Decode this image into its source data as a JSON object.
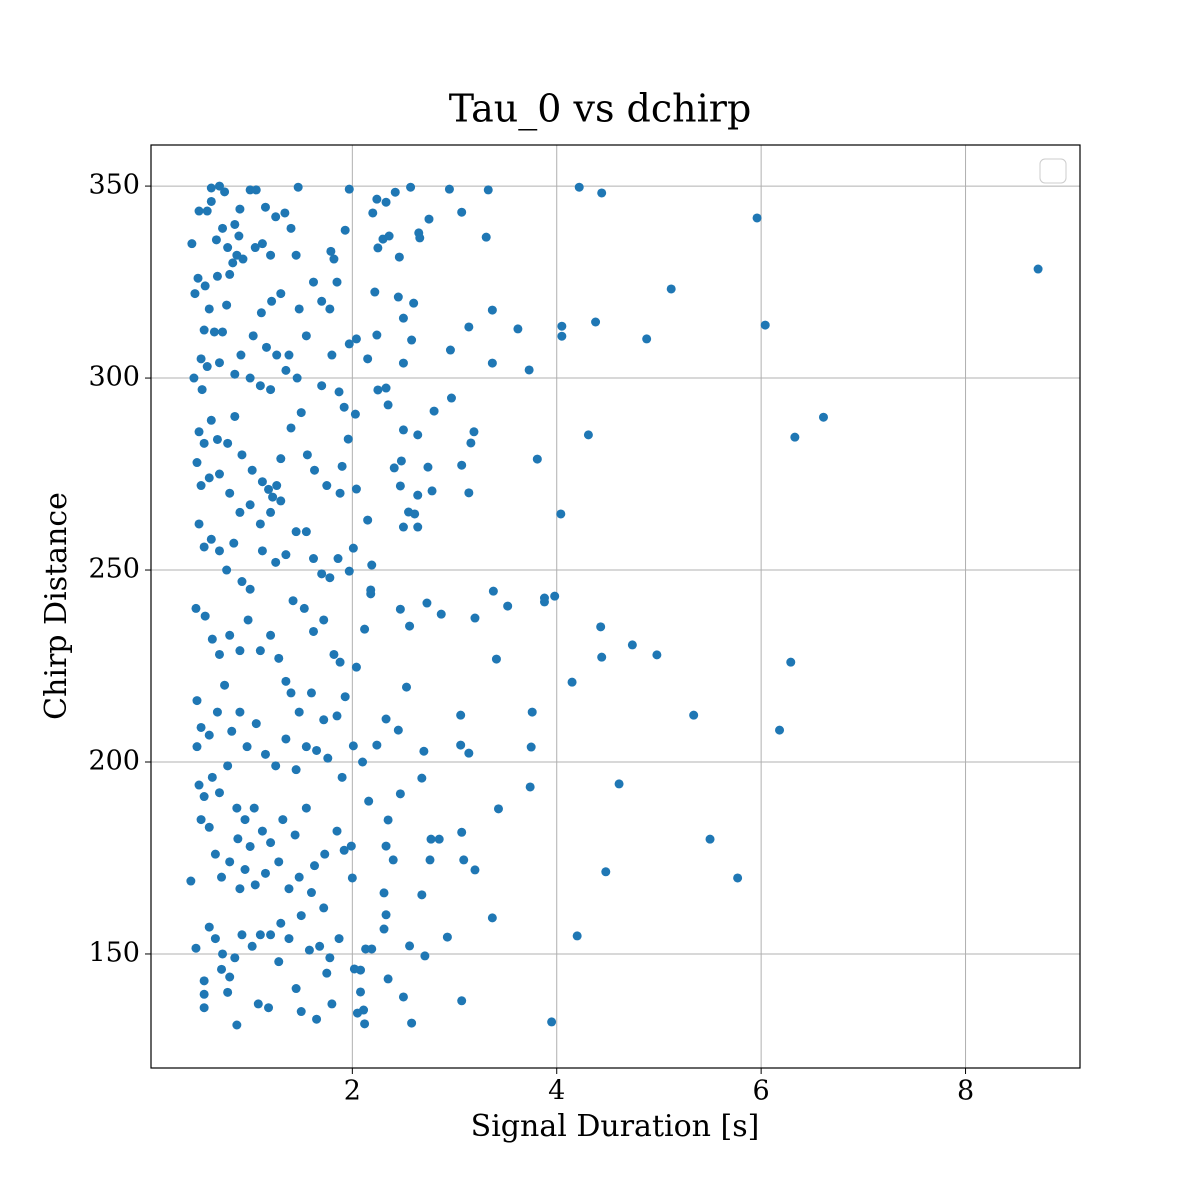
{
  "chart_data": {
    "type": "scatter",
    "title": "Tau_0 vs dchirp",
    "xlabel": "Signal Duration [s]",
    "ylabel": "Chirp Distance",
    "color": "#1f77b4",
    "grid": true,
    "legend": "upper right",
    "xlim": [
      0.03,
      9.12
    ],
    "ylim": [
      120.3,
      360.7
    ],
    "xticks": [
      2,
      4,
      6,
      8
    ],
    "yticks": [
      150,
      200,
      250,
      300,
      350
    ],
    "x": [
      8.71,
      5.96,
      6.04,
      6.61,
      6.33,
      5.12,
      4.88,
      4.38,
      4.31,
      4.04,
      3.81,
      3.73,
      3.62,
      3.37,
      4.44,
      4.22,
      4.05,
      4.05,
      6.29,
      6.18,
      5.34,
      4.74,
      4.98,
      4.43,
      4.44,
      4.15,
      3.98,
      3.88,
      3.88,
      3.52,
      3.38,
      3.2,
      3.41,
      3.76,
      3.75,
      3.74,
      4.61,
      5.5,
      5.77,
      4.48,
      4.2,
      3.95,
      3.43,
      3.37,
      3.07,
      3.09,
      3.2,
      3.07,
      2.93,
      3.06,
      3.06,
      3.14,
      2.87,
      2.73,
      2.56,
      2.53,
      2.68,
      2.7,
      2.77,
      2.85,
      2.76,
      2.68,
      2.71,
      2.56,
      2.58,
      2.5,
      2.33,
      2.45,
      2.47,
      2.35,
      2.33,
      2.4,
      2.31,
      2.33,
      2.31,
      2.35,
      2.11,
      2.05,
      2.12,
      2.08,
      2.13,
      2.19,
      2.08,
      2.02,
      2.0,
      1.99,
      2.16,
      2.1,
      2.01,
      2.24,
      2.04,
      2.12,
      2.18,
      2.18,
      2.19,
      2.47,
      1.97,
      2.01,
      2.04,
      1.96,
      2.03,
      1.92,
      1.87,
      2.25,
      2.33,
      2.35,
      2.5,
      2.64,
      2.8,
      2.97,
      3.07,
      3.14,
      3.16,
      3.19,
      2.74,
      2.78,
      2.64,
      2.55,
      2.61,
      2.5,
      2.64,
      2.41,
      2.47,
      2.48,
      2.15,
      1.97,
      2.04,
      2.15,
      2.24,
      2.5,
      2.6,
      2.45,
      2.22,
      2.58,
      2.96,
      3.14,
      3.37,
      2.5,
      2.25,
      2.3,
      2.36,
      2.46,
      2.65,
      2.66,
      2.75,
      2.2,
      2.24,
      2.33,
      2.42,
      2.57,
      2.95,
      3.33,
      3.07,
      3.31,
      1.97,
      1.93,
      1.47,
      0.43,
      0.46,
      0.49,
      0.5,
      0.58,
      0.62,
      0.7,
      0.75,
      0.62,
      0.73,
      0.67,
      0.85,
      0.89,
      0.9,
      0.87,
      0.78,
      0.8,
      0.68,
      0.56,
      0.6,
      0.55,
      0.65,
      0.73,
      0.77,
      0.83,
      0.93,
      1.0,
      1.06,
      1.15,
      1.25,
      1.34,
      1.12,
      1.05,
      1.2,
      1.4,
      1.45,
      1.3,
      1.21,
      1.11,
      1.03,
      1.16,
      1.26,
      1.38,
      1.48,
      1.55,
      1.62,
      1.7,
      1.78,
      1.85,
      1.79,
      1.82,
      0.52,
      0.58,
      0.7,
      0.85,
      0.91,
      1.0,
      1.1,
      1.2,
      1.35,
      1.46,
      1.7,
      1.8,
      0.45,
      0.53,
      0.62,
      0.5,
      0.55,
      0.68,
      0.78,
      0.85,
      0.92,
      1.02,
      1.12,
      1.18,
      1.22,
      1.26,
      1.3,
      1.4,
      1.5,
      1.56,
      1.63,
      1.75,
      1.88,
      1.9,
      0.48,
      0.52,
      0.6,
      0.7,
      0.8,
      0.9,
      1.0,
      1.1,
      1.2,
      1.3,
      1.45,
      1.55,
      1.62,
      1.7,
      1.78,
      1.86,
      0.5,
      0.55,
      0.62,
      0.7,
      0.77,
      0.84,
      0.92,
      1.0,
      1.12,
      1.25,
      1.35,
      1.42,
      1.53,
      1.62,
      1.72,
      1.82,
      1.88,
      0.47,
      0.56,
      0.63,
      0.7,
      0.8,
      0.9,
      0.98,
      1.1,
      1.2,
      1.28,
      1.35,
      1.4,
      1.48,
      1.6,
      1.72,
      1.85,
      1.93,
      0.48,
      0.52,
      0.6,
      0.68,
      0.75,
      0.82,
      0.9,
      0.97,
      1.06,
      1.15,
      1.25,
      1.35,
      1.45,
      1.55,
      1.65,
      1.76,
      1.9,
      0.48,
      0.5,
      0.55,
      0.63,
      0.7,
      0.78,
      0.87,
      0.95,
      1.04,
      1.12,
      1.2,
      1.32,
      1.44,
      1.55,
      1.63,
      1.73,
      1.85,
      1.92,
      0.52,
      0.6,
      0.66,
      0.72,
      0.8,
      0.88,
      0.95,
      1.05,
      1.15,
      1.28,
      1.38,
      1.48,
      1.6,
      1.72,
      0.42,
      0.6,
      0.66,
      0.73,
      0.85,
      0.92,
      1.02,
      1.1,
      1.2,
      1.3,
      1.38,
      1.5,
      1.58,
      1.68,
      1.78,
      1.87,
      0.47,
      0.55,
      0.55,
      0.55,
      0.72,
      0.8,
      0.78,
      0.87,
      1.08,
      1.18,
      1.28,
      1.45,
      1.5,
      1.65,
      1.75,
      1.8,
      0.9,
      1.0
    ],
    "values": [
      328.4,
      341.7,
      313.8,
      289.8,
      284.6,
      323.2,
      310.2,
      314.6,
      285.2,
      264.6,
      278.9,
      302.1,
      312.8,
      317.7,
      348.2,
      349.7,
      313.5,
      310.9,
      226.0,
      208.3,
      212.2,
      230.5,
      227.9,
      235.2,
      227.3,
      220.8,
      243.2,
      242.7,
      241.7,
      240.6,
      244.5,
      237.5,
      226.8,
      213.0,
      203.9,
      193.5,
      194.3,
      179.9,
      169.8,
      171.4,
      154.7,
      132.3,
      187.8,
      159.4,
      181.7,
      174.5,
      171.9,
      137.8,
      154.4,
      212.2,
      204.4,
      202.3,
      238.5,
      241.4,
      235.4,
      219.5,
      195.8,
      202.8,
      179.9,
      179.9,
      174.5,
      165.4,
      149.5,
      152.1,
      132.0,
      138.8,
      211.2,
      208.3,
      191.7,
      184.9,
      178.1,
      174.5,
      165.9,
      160.2,
      156.5,
      143.5,
      135.4,
      134.6,
      131.8,
      145.8,
      151.3,
      151.3,
      140.1,
      146.1,
      169.8,
      178.1,
      189.8,
      200.0,
      204.2,
      204.4,
      224.7,
      234.6,
      243.8,
      244.8,
      251.3,
      239.8,
      249.7,
      255.7,
      271.1,
      284.1,
      290.6,
      292.4,
      296.4,
      296.9,
      297.4,
      293.0,
      286.5,
      285.2,
      291.4,
      294.8,
      277.3,
      270.1,
      283.1,
      286.0,
      276.8,
      270.6,
      269.5,
      265.1,
      264.6,
      261.2,
      261.2,
      276.6,
      271.9,
      278.4,
      263.0,
      308.9,
      310.2,
      305.0,
      311.2,
      315.6,
      319.5,
      321.1,
      322.4,
      309.9,
      307.3,
      313.3,
      303.9,
      303.9,
      333.9,
      336.2,
      337.0,
      331.5,
      337.8,
      336.5,
      341.4,
      343.0,
      346.6,
      345.8,
      348.4,
      349.7,
      349.2,
      349.0,
      343.2,
      336.7,
      349.2,
      338.5,
      349.7,
      335,
      322,
      326,
      343.5,
      343.5,
      349.5,
      350,
      348.5,
      346,
      339,
      336,
      340,
      337,
      344,
      332,
      334,
      327,
      326.5,
      324,
      318,
      312.5,
      312,
      312,
      319,
      330,
      331,
      349,
      349,
      344.5,
      342,
      343,
      335,
      334,
      332,
      339,
      332,
      322,
      320,
      317,
      311,
      308,
      306,
      306,
      318,
      311,
      325,
      320,
      318,
      325,
      333,
      331,
      305,
      303,
      304,
      301,
      306,
      300,
      298,
      297,
      302,
      300,
      298,
      306,
      300,
      297,
      289,
      286,
      283,
      284,
      283,
      290,
      280,
      276,
      273,
      271,
      269,
      272,
      279,
      287,
      291,
      280,
      276,
      272,
      270,
      277,
      278,
      272,
      274,
      275,
      270,
      265,
      267,
      262,
      265,
      268,
      260,
      260,
      253,
      249,
      248,
      253,
      262,
      256,
      258,
      255,
      250,
      257,
      247,
      245,
      255,
      252,
      254,
      242,
      240,
      234,
      237,
      228,
      226,
      240,
      238,
      232,
      228,
      233,
      229,
      237,
      229,
      233,
      227,
      221,
      218,
      213,
      218,
      211,
      212,
      217,
      216,
      209,
      207,
      213,
      220,
      208,
      213,
      204,
      210,
      202,
      199,
      206,
      198,
      204,
      203,
      201,
      196,
      204,
      194,
      191,
      196,
      192,
      199,
      188,
      185,
      188,
      182,
      179,
      185,
      181,
      188,
      173,
      176,
      182,
      177,
      185,
      183,
      176,
      170,
      174,
      180,
      172,
      168,
      171,
      174,
      167,
      170,
      166,
      162,
      169,
      157,
      154,
      150,
      149,
      155,
      152,
      155,
      155,
      158,
      154,
      160,
      151,
      152,
      149,
      154,
      151.5,
      143,
      139.5,
      136,
      146,
      144,
      140,
      131.5,
      137,
      136,
      148,
      141,
      135,
      133,
      145,
      137,
      167,
      178
    ]
  }
}
